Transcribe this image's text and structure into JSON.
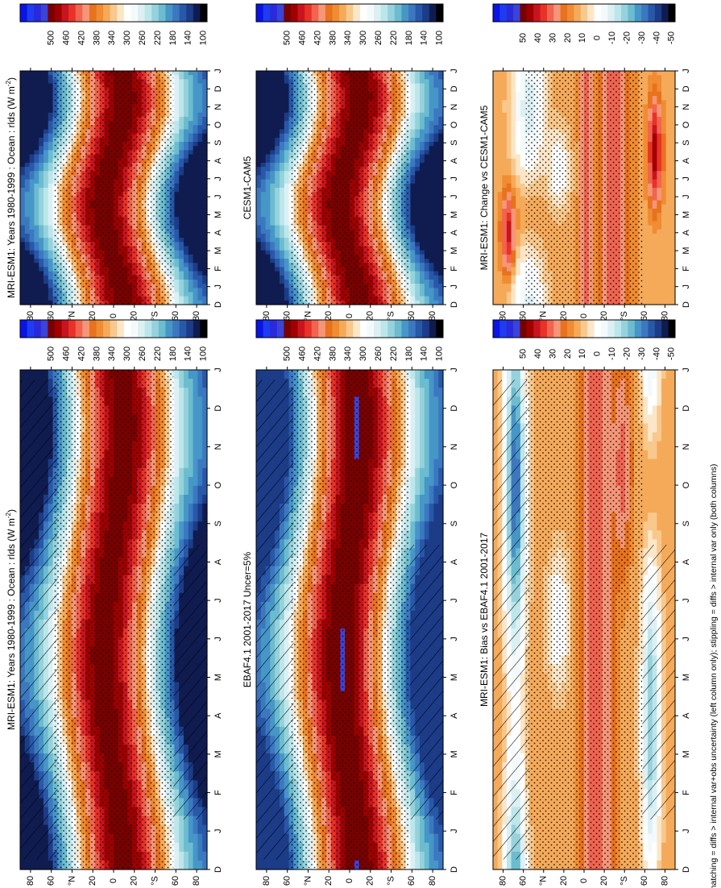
{
  "chart_data": [
    {
      "type": "heatmap",
      "id": "left-top",
      "title": "MRI-ESM1: Years 1980-1999 : Ocean : rlds (W m",
      "title_sup": "-2",
      "title_close": ")",
      "x_tick_labels": [
        "D",
        "J",
        "F",
        "M",
        "A",
        "M",
        "J",
        "J",
        "A",
        "S",
        "O",
        "N",
        "D",
        "J"
      ],
      "y_tick_labels": [
        "80",
        "60",
        "°N",
        "20",
        "0",
        "20",
        "°S",
        "60",
        "80"
      ],
      "y_values": [
        80,
        60,
        40,
        20,
        0,
        -20,
        -40,
        -60,
        -80
      ],
      "colorbar_labels": [
        "500",
        "460",
        "420",
        "380",
        "340",
        "300",
        "260",
        "220",
        "180",
        "140",
        "100"
      ],
      "overlay": [
        "stipple",
        "hatch"
      ]
    },
    {
      "type": "heatmap",
      "id": "left-middle",
      "title": "EBAF4.1 2001-2017 Uncer=5%",
      "x_tick_labels": [
        "D",
        "J",
        "F",
        "M",
        "A",
        "M",
        "J",
        "J",
        "A",
        "S",
        "O",
        "N",
        "D",
        "J"
      ],
      "y_tick_labels": [
        "80",
        "60",
        "°N",
        "20",
        "0",
        "20",
        "°S",
        "60",
        "80"
      ],
      "y_values": [
        80,
        60,
        40,
        20,
        0,
        -20,
        -40,
        -60,
        -80
      ],
      "colorbar_labels": [
        "500",
        "460",
        "420",
        "380",
        "340",
        "300",
        "260",
        "220",
        "180",
        "140",
        "100"
      ],
      "overlay": [
        "stipple",
        "hatch"
      ]
    },
    {
      "type": "heatmap",
      "id": "left-bottom",
      "title": "MRI-ESM1: Bias vs EBAF4.1 2001-2017",
      "x_tick_labels": [
        "D",
        "J",
        "F",
        "M",
        "A",
        "M",
        "J",
        "J",
        "A",
        "S",
        "O",
        "N",
        "D",
        "J"
      ],
      "y_tick_labels": [
        "80",
        "60",
        "°N",
        "20",
        "0",
        "20",
        "°S",
        "60",
        "80"
      ],
      "y_values": [
        80,
        60,
        40,
        20,
        0,
        -20,
        -40,
        -60,
        -80
      ],
      "colorbar_labels": [
        "50",
        "40",
        "30",
        "20",
        "10",
        "0",
        "-10",
        "-20",
        "-30",
        "-40",
        "-50"
      ],
      "overlay": [
        "stipple",
        "hatch"
      ]
    },
    {
      "type": "heatmap",
      "id": "right-top",
      "title": "MRI-ESM1: Years 1980-1999 : Ocean : rlds (W m",
      "title_sup": "-2",
      "title_close": ")",
      "x_tick_labels": [
        "D",
        "J",
        "F",
        "M",
        "A",
        "M",
        "J",
        "J",
        "A",
        "S",
        "O",
        "N",
        "D",
        "J"
      ],
      "y_tick_labels": [
        "80",
        "60",
        "°N",
        "20",
        "0",
        "20",
        "°S",
        "60",
        "80"
      ],
      "y_values": [
        80,
        60,
        40,
        20,
        0,
        -20,
        -40,
        -60,
        -80
      ],
      "colorbar_labels": [
        "500",
        "460",
        "420",
        "380",
        "340",
        "300",
        "260",
        "220",
        "180",
        "140",
        "100"
      ],
      "overlay": [
        "stipple"
      ]
    },
    {
      "type": "heatmap",
      "id": "right-middle",
      "title": "CESM1-CAM5",
      "x_tick_labels": [
        "D",
        "J",
        "F",
        "M",
        "A",
        "M",
        "J",
        "J",
        "A",
        "S",
        "O",
        "N",
        "D",
        "J"
      ],
      "y_tick_labels": [
        "80",
        "60",
        "°N",
        "20",
        "0",
        "20",
        "°S",
        "60",
        "80"
      ],
      "y_values": [
        80,
        60,
        40,
        20,
        0,
        -20,
        -40,
        -60,
        -80
      ],
      "colorbar_labels": [
        "500",
        "460",
        "420",
        "380",
        "340",
        "300",
        "260",
        "220",
        "180",
        "140",
        "100"
      ],
      "overlay": [
        "stipple"
      ]
    },
    {
      "type": "heatmap",
      "id": "right-bottom",
      "title": "MRI-ESM1: Change vs CESM1-CAM5",
      "x_tick_labels": [
        "D",
        "J",
        "F",
        "M",
        "A",
        "M",
        "J",
        "J",
        "A",
        "S",
        "O",
        "N",
        "D",
        "J"
      ],
      "y_tick_labels": [
        "80",
        "60",
        "°N",
        "20",
        "0",
        "20",
        "°S",
        "60",
        "80"
      ],
      "y_values": [
        80,
        60,
        40,
        20,
        0,
        -20,
        -40,
        -60,
        -80
      ],
      "colorbar_labels": [
        "50",
        "40",
        "30",
        "20",
        "10",
        "0",
        "-10",
        "-20",
        "-30",
        "-40",
        "-50"
      ],
      "overlay": [
        "stipple"
      ]
    }
  ],
  "colorbars": {
    "absolute": [
      "#0a14e6",
      "#1f3cf0",
      "#2a2adc",
      "#3a44d8",
      "#7a0000",
      "#a00000",
      "#c8141e",
      "#e83228",
      "#f06450",
      "#f59678",
      "#e8721e",
      "#f08c32",
      "#f5aa5a",
      "#f8c88c",
      "#fce6c8",
      "#ffffff",
      "#f4fafc",
      "#dcf0f4",
      "#bce6ea",
      "#96d2dc",
      "#6cbcd0",
      "#4696c8",
      "#3c78c0",
      "#2858a8",
      "#1c3c88",
      "#101c50",
      "#000000"
    ],
    "difference": [
      "#0a14e6",
      "#1f3cf0",
      "#2a2adc",
      "#3a44d8",
      "#7a0000",
      "#a00000",
      "#c8141e",
      "#e83228",
      "#f06450",
      "#f59678",
      "#e8721e",
      "#f08c32",
      "#f5aa5a",
      "#f8c88c",
      "#fce6c8",
      "#ffffff",
      "#f4fafc",
      "#dcf0f4",
      "#bce6ea",
      "#96d2dc",
      "#6cbcd0",
      "#4696c8",
      "#3c78c0",
      "#2858a8",
      "#1c3c88",
      "#101c50",
      "#000000"
    ]
  },
  "footnote": "hatching = diffs > internal var+obs uncertainty (left column only); stippling = diffs > internal var only (both columns)"
}
